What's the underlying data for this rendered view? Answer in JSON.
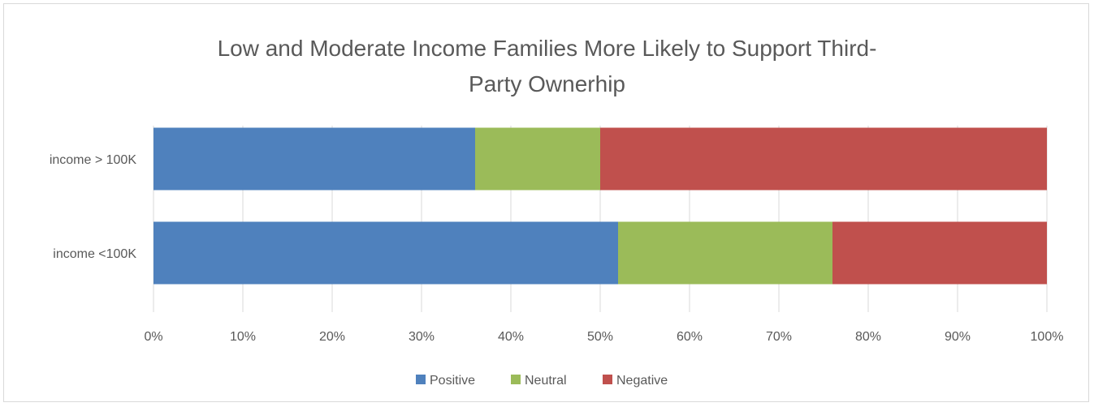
{
  "chart_data": {
    "type": "bar",
    "orientation": "horizontal",
    "stacking": "percent",
    "title_lines": [
      "Low and Moderate Income Families More Likely to Support Third-",
      "Party Ownerhip"
    ],
    "categories": [
      "income > 100K",
      "income <100K"
    ],
    "series": [
      {
        "name": "Positive",
        "values": [
          36,
          52
        ],
        "color": "#4f81bd"
      },
      {
        "name": "Neutral",
        "values": [
          14,
          24
        ],
        "color": "#9bbb59"
      },
      {
        "name": "Negative",
        "values": [
          50,
          24
        ],
        "color": "#c0504d"
      }
    ],
    "xlim": [
      0,
      100
    ],
    "xticks": [
      "0%",
      "10%",
      "20%",
      "30%",
      "40%",
      "50%",
      "60%",
      "70%",
      "80%",
      "90%",
      "100%"
    ],
    "grid": true,
    "legend_position": "bottom"
  }
}
